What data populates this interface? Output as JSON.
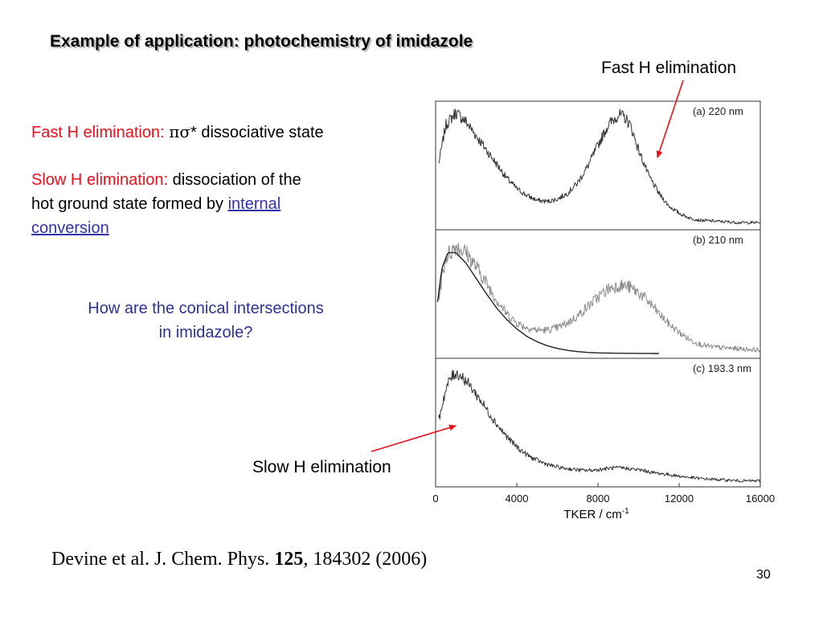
{
  "slide": {
    "title": "Example of application: photochemistry of imidazole",
    "fast_label": "Fast H elimination:",
    "fast_greek": "πσ",
    "fast_rest": "* dissociative state",
    "slow_label": "Slow H elimination:",
    "slow_rest": " dissociation of the",
    "slow_line2": "hot ground state formed by ",
    "link_internal": "internal",
    "link_conversion": "conversion",
    "question_line1": "How are the conical intersections",
    "question_line2": "in imidazole?",
    "annotation_fast": "Fast H elimination",
    "annotation_slow": "Slow H elimination",
    "citation_prefix": "Devine et al. J. Chem. Phys. ",
    "citation_volume": "125",
    "citation_suffix": ", 184302 (2006)",
    "page_number": "30"
  },
  "colors": {
    "annotation_arrow": "#e8111b",
    "trace_a": "#333333",
    "trace_b": "#8c8c8c",
    "trace_c": "#333333",
    "fit_line": "#222222",
    "question_text": "#2e3192"
  },
  "chart_data": {
    "type": "line",
    "xlabel": "TKER / cm",
    "xlabel_superscript": "-1",
    "xlim": [
      0,
      16000
    ],
    "xticks": [
      0,
      4000,
      8000,
      12000,
      16000
    ],
    "xtick_labels": [
      "0",
      "4000",
      "8000",
      "12000",
      "16000"
    ],
    "yticks": false,
    "panels": [
      {
        "label": "(a) 220 nm",
        "series": [
          {
            "style": "noisy-dark",
            "x": [
              150,
              500,
              1000,
              1500,
              2000,
              2500,
              3000,
              3500,
              4000,
              4500,
              5000,
              5500,
              6000,
              6500,
              7000,
              7500,
              8000,
              8500,
              9000,
              9300,
              9600,
              10000,
              10500,
              11000,
              11500,
              12000,
              12500,
              13000,
              14000,
              15000,
              16000
            ],
            "y": [
              0.52,
              0.85,
              0.96,
              0.88,
              0.76,
              0.64,
              0.52,
              0.4,
              0.31,
              0.25,
              0.21,
              0.2,
              0.22,
              0.27,
              0.36,
              0.5,
              0.68,
              0.85,
              0.94,
              0.92,
              0.85,
              0.64,
              0.42,
              0.27,
              0.16,
              0.1,
              0.06,
              0.04,
              0.03,
              0.02,
              0.02
            ]
          }
        ]
      },
      {
        "label": "(b) 210 nm",
        "series": [
          {
            "style": "noisy-light",
            "x": [
              150,
              500,
              1000,
              1500,
              2000,
              2500,
              3000,
              3500,
              4000,
              4500,
              5000,
              5500,
              6000,
              6500,
              7000,
              7500,
              8000,
              8500,
              9000,
              9500,
              10000,
              10500,
              11000,
              11500,
              12000,
              12500,
              13000,
              13500,
              14000,
              15000,
              16000
            ],
            "y": [
              0.48,
              0.82,
              0.92,
              0.86,
              0.74,
              0.6,
              0.46,
              0.34,
              0.26,
              0.22,
              0.2,
              0.2,
              0.22,
              0.26,
              0.32,
              0.4,
              0.48,
              0.55,
              0.58,
              0.57,
              0.52,
              0.44,
              0.34,
              0.25,
              0.18,
              0.12,
              0.08,
              0.06,
              0.05,
              0.04,
              0.03
            ]
          },
          {
            "style": "fit",
            "x": [
              100,
              300,
              600,
              1000,
              1500,
              2000,
              2500,
              3000,
              3500,
              4000,
              4500,
              5000,
              5500,
              6000,
              6500,
              7000,
              7500,
              8000,
              9000,
              10000,
              11000
            ],
            "y": [
              0.44,
              0.72,
              0.86,
              0.86,
              0.77,
              0.64,
              0.51,
              0.39,
              0.29,
              0.21,
              0.145,
              0.1,
              0.066,
              0.043,
              0.027,
              0.016,
              0.009,
              0.005,
              0.002,
              0.001,
              0.0
            ]
          }
        ]
      },
      {
        "label": "(c) 193.3 nm",
        "series": [
          {
            "style": "noisy-dark",
            "x": [
              150,
              400,
              700,
              1000,
              1300,
              1700,
              2200,
              2700,
              3200,
              3700,
              4200,
              4700,
              5200,
              5700,
              6200,
              6700,
              7200,
              7700,
              8200,
              8700,
              9200,
              9700,
              10200,
              10700,
              11200,
              12000,
              13000,
              14000,
              15000,
              16000
            ],
            "y": [
              0.52,
              0.72,
              0.88,
              0.93,
              0.9,
              0.82,
              0.7,
              0.57,
              0.45,
              0.35,
              0.27,
              0.21,
              0.17,
              0.14,
              0.12,
              0.11,
              0.1,
              0.1,
              0.11,
              0.12,
              0.12,
              0.11,
              0.1,
              0.08,
              0.07,
              0.05,
              0.03,
              0.02,
              0.01,
              0.01
            ]
          }
        ]
      }
    ]
  }
}
